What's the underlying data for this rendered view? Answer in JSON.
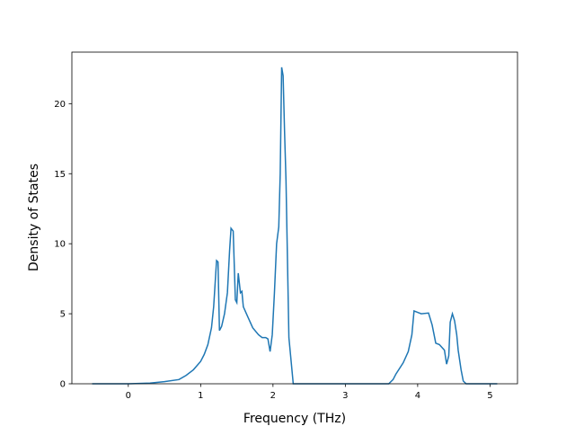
{
  "chart_data": {
    "type": "line",
    "xlabel": "Frequency (THz)",
    "ylabel": "Density of States",
    "x": [
      -0.5,
      0,
      0.3,
      0.5,
      0.7,
      0.8,
      0.9,
      1.0,
      1.05,
      1.1,
      1.15,
      1.18,
      1.22,
      1.24,
      1.26,
      1.29,
      1.33,
      1.37,
      1.4,
      1.42,
      1.45,
      1.48,
      1.5,
      1.52,
      1.55,
      1.57,
      1.59,
      1.65,
      1.72,
      1.8,
      1.85,
      1.9,
      1.93,
      1.96,
      1.99,
      2.02,
      2.05,
      2.08,
      2.1,
      2.12,
      2.14,
      2.16,
      2.18,
      2.22,
      2.28,
      2.5,
      3.0,
      3.6,
      3.66,
      3.7,
      3.8,
      3.87,
      3.92,
      3.95,
      4.0,
      4.05,
      4.15,
      4.2,
      4.25,
      4.3,
      4.37,
      4.4,
      4.43,
      4.45,
      4.48,
      4.51,
      4.54,
      4.56,
      4.6,
      4.63,
      4.67,
      5.1
    ],
    "series": [
      {
        "name": "DOS",
        "color": "#1f77b4",
        "values": [
          0,
          0,
          0.05,
          0.15,
          0.3,
          0.6,
          1.0,
          1.6,
          2.1,
          2.8,
          4.0,
          5.5,
          8.8,
          8.7,
          3.8,
          4.1,
          5.0,
          6.5,
          9.5,
          11.1,
          10.9,
          6.0,
          5.8,
          7.9,
          6.5,
          6.6,
          5.5,
          4.8,
          4.0,
          3.5,
          3.3,
          3.3,
          3.2,
          2.3,
          3.5,
          6.5,
          10.0,
          11.2,
          15.0,
          22.6,
          22.0,
          18.0,
          14.5,
          3.3,
          0,
          0,
          0,
          0,
          0.3,
          0.7,
          1.5,
          2.3,
          3.5,
          5.2,
          5.1,
          5.0,
          5.05,
          4.2,
          2.9,
          2.8,
          2.4,
          1.4,
          2.0,
          4.4,
          5.0,
          4.5,
          3.5,
          2.4,
          1.0,
          0.2,
          0,
          0
        ]
      }
    ],
    "xlim": [
      -0.78,
      5.38
    ],
    "xticks": [
      0,
      1,
      2,
      3,
      4,
      5
    ],
    "ylim": [
      0,
      23.68
    ],
    "yticks": [
      0,
      5,
      10,
      15,
      20
    ]
  }
}
